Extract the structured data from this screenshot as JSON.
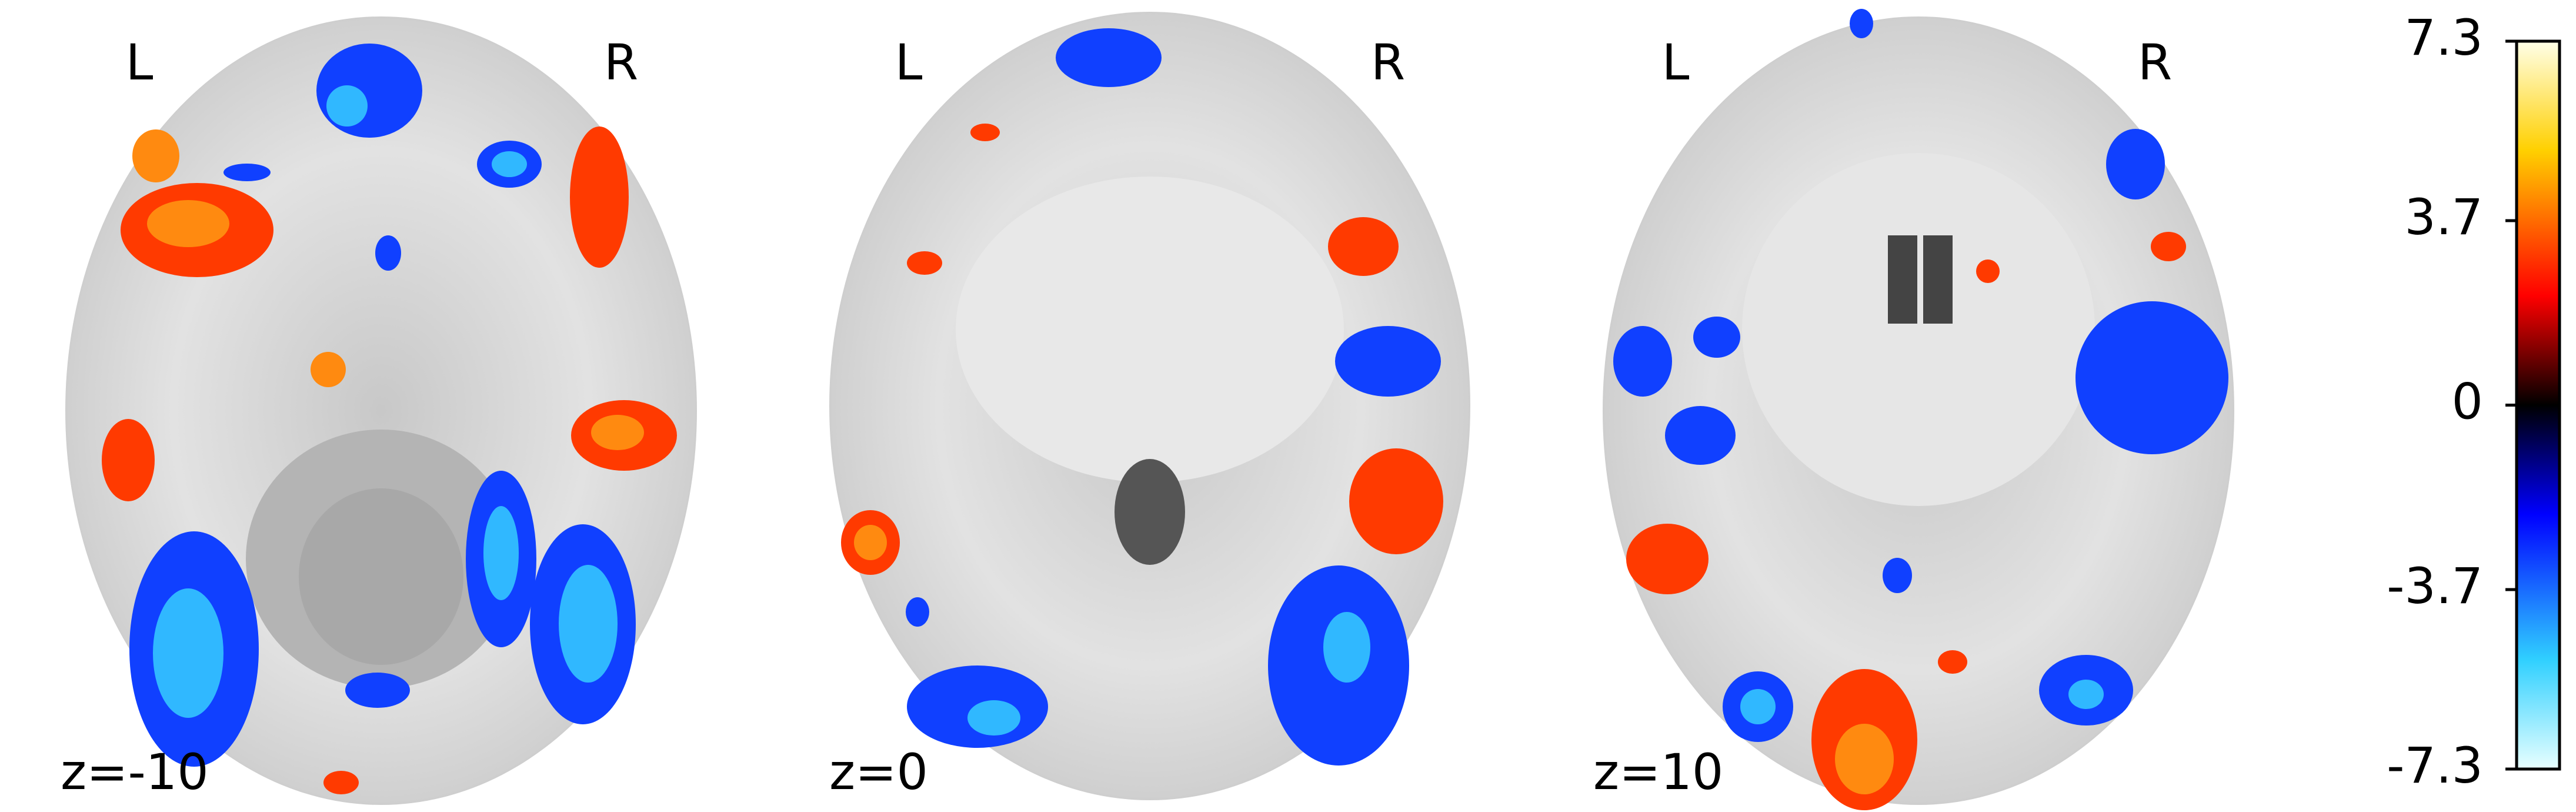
{
  "panels": [
    {
      "left": "L",
      "right": "R",
      "label": "z=-10"
    },
    {
      "left": "L",
      "right": "R",
      "label": "z=0"
    },
    {
      "left": "L",
      "right": "R",
      "label": "z=10"
    }
  ],
  "colorbar": {
    "range": [
      -7.3,
      7.3
    ],
    "ticks": [
      7.3,
      3.7,
      0,
      -3.7,
      -7.3
    ]
  }
}
